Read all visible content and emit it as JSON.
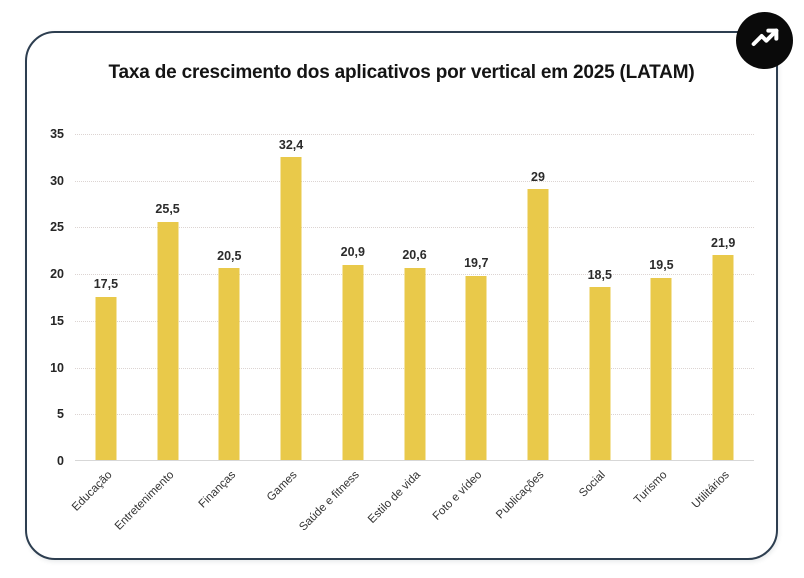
{
  "header": {
    "title": "Taxa de crescimento dos aplicativos por vertical em 2025 (LATAM)"
  },
  "badge": {
    "icon": "trending-up-icon",
    "background": "#0a0a0a",
    "glyph_color": "#ffffff"
  },
  "chart_data": {
    "type": "bar",
    "title": "Taxa de crescimento dos aplicativos por vertical em 2025 (LATAM)",
    "categories": [
      "Educação",
      "Entretenimento",
      "Finanças",
      "Games",
      "Saúde e fitness",
      "Estilo de vida",
      "Foto e vídeo",
      "Publicações",
      "Social",
      "Turismo",
      "Utilitários"
    ],
    "values": [
      17.5,
      25.5,
      20.5,
      32.4,
      20.9,
      20.6,
      19.7,
      29,
      18.5,
      19.5,
      21.9
    ],
    "value_labels": [
      "17,5",
      "25,5",
      "20,5",
      "32,4",
      "20,9",
      "20,6",
      "19,7",
      "29",
      "18,5",
      "19,5",
      "21,9"
    ],
    "xlabel": "",
    "ylabel": "",
    "ylim": [
      0,
      35
    ],
    "yticks": [
      0,
      5,
      10,
      15,
      20,
      25,
      30,
      35
    ],
    "grid": "horizontal-dotted",
    "legend": "none",
    "bar_color": "#E9C94A"
  }
}
